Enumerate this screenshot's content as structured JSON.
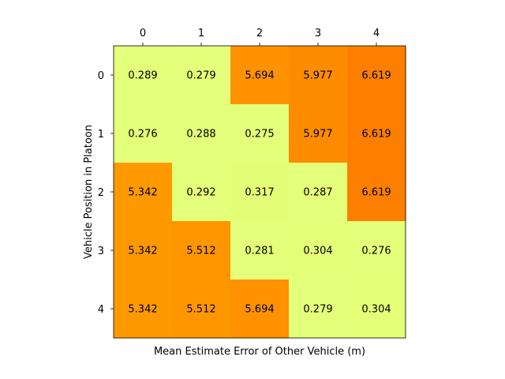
{
  "chart_data": {
    "type": "heatmap",
    "title": "",
    "xlabel": "Mean Estimate Error of Other Vehicle (m)",
    "ylabel": "Vehicle Position in Platoon",
    "x_ticks": [
      "0",
      "1",
      "2",
      "3",
      "4"
    ],
    "y_ticks": [
      "0",
      "1",
      "2",
      "3",
      "4"
    ],
    "x_axis_position": "top",
    "colormap": "Wistia",
    "grid": false,
    "values": [
      [
        0.289,
        0.279,
        5.694,
        5.977,
        6.619
      ],
      [
        0.276,
        0.288,
        0.275,
        5.977,
        6.619
      ],
      [
        5.342,
        0.292,
        0.317,
        0.287,
        6.619
      ],
      [
        5.342,
        5.512,
        0.281,
        0.304,
        0.276
      ],
      [
        5.342,
        5.512,
        5.694,
        0.279,
        0.304
      ]
    ],
    "value_labels": [
      [
        "0.289",
        "0.279",
        "5.694",
        "5.977",
        "6.619"
      ],
      [
        "0.276",
        "0.288",
        "0.275",
        "5.977",
        "6.619"
      ],
      [
        "5.342",
        "0.292",
        "0.317",
        "0.287",
        "6.619"
      ],
      [
        "5.342",
        "5.512",
        "0.281",
        "0.304",
        "0.276"
      ],
      [
        "5.342",
        "5.512",
        "5.694",
        "0.279",
        "0.304"
      ]
    ]
  }
}
